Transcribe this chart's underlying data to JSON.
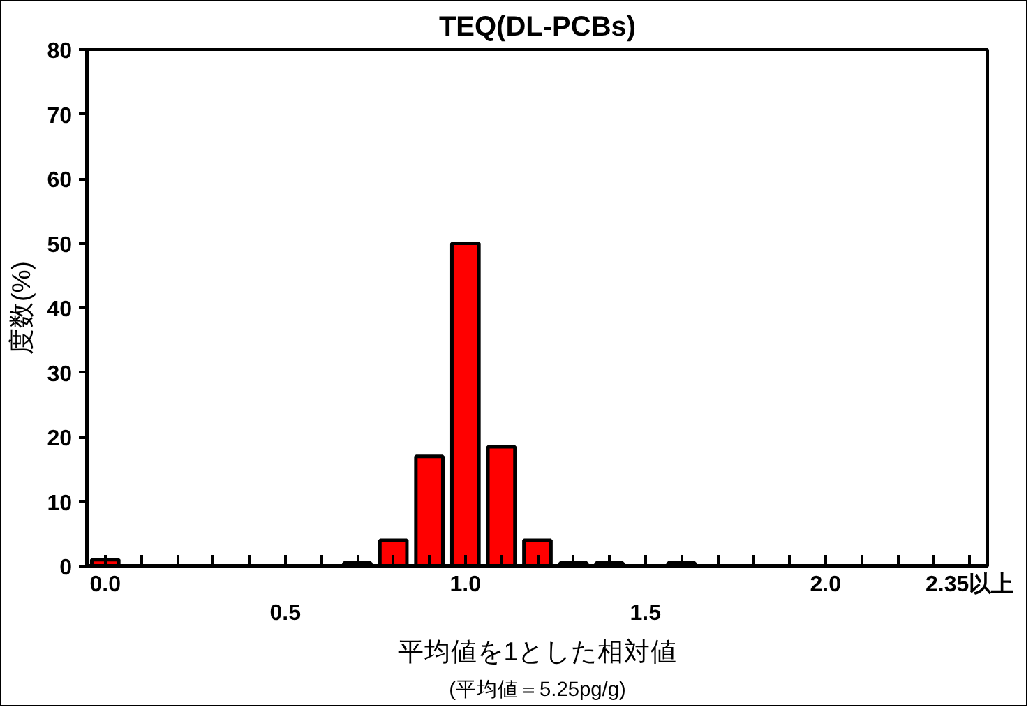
{
  "chart_data": {
    "type": "bar",
    "title": "TEQ(DL-PCBs)",
    "xlabel": "平均値を1とした相対値",
    "ylabel": "度数(%)",
    "annotations": [
      "(平均値＝5.25pg/g)"
    ],
    "categories": [
      "0.0",
      null,
      null,
      null,
      null,
      "0.5",
      null,
      null,
      null,
      null,
      "1.0",
      null,
      null,
      null,
      null,
      "1.5",
      null,
      null,
      null,
      null,
      "2.0",
      null,
      null,
      null,
      "2.35以上"
    ],
    "values": [
      1,
      0,
      0,
      0,
      0,
      0,
      0,
      0.5,
      4,
      17,
      50,
      18.5,
      4,
      0.5,
      0.5,
      0,
      0.5,
      0,
      0,
      0,
      0,
      0,
      0,
      0,
      0
    ],
    "color": "#ff0000",
    "ylim": [
      0,
      80
    ],
    "yticks": [
      0,
      10,
      20,
      30,
      40,
      50,
      60,
      70,
      80
    ],
    "grid": false
  }
}
